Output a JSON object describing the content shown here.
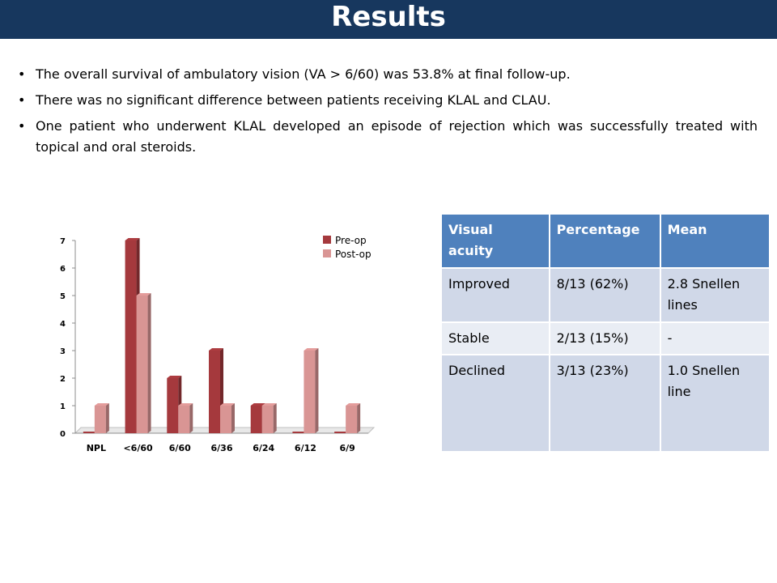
{
  "slide": {
    "title": "Results",
    "bullets": [
      "The overall survival of ambulatory vision (VA > 6/60) was 53.8% at final follow-up.",
      "There was no significant difference between patients receiving KLAL and CLAU.",
      "One patient who underwent KLAL developed an episode of rejection which was successfully treated with topical and oral steroids."
    ]
  },
  "table": {
    "headers": [
      "Visual acuity",
      "Percentage",
      "Mean"
    ],
    "rows": [
      [
        "Improved",
        "8/13 (62%)",
        "2.8 Snellen lines"
      ],
      [
        "Stable",
        "2/13 (15%)",
        "-"
      ],
      [
        "Declined",
        "3/13 (23%)",
        "1.0 Snellen line"
      ]
    ]
  },
  "chart_data": {
    "type": "bar",
    "categories": [
      "NPL",
      "<6/60",
      "6/60",
      "6/36",
      "6/24",
      "6/12",
      "6/9"
    ],
    "series": [
      {
        "name": "Pre-op",
        "values": [
          0,
          7,
          2,
          3,
          1,
          0,
          0
        ],
        "color": "#a5393d"
      },
      {
        "name": "Post-op",
        "values": [
          1,
          5,
          1,
          1,
          1,
          3,
          1
        ],
        "color": "#d99594"
      }
    ],
    "yticks": [
      "0",
      "1",
      "2",
      "3",
      "4",
      "5",
      "6",
      "7"
    ],
    "ylim": [
      0,
      7
    ],
    "legend": "top-right",
    "three_d": true,
    "grid": false
  }
}
